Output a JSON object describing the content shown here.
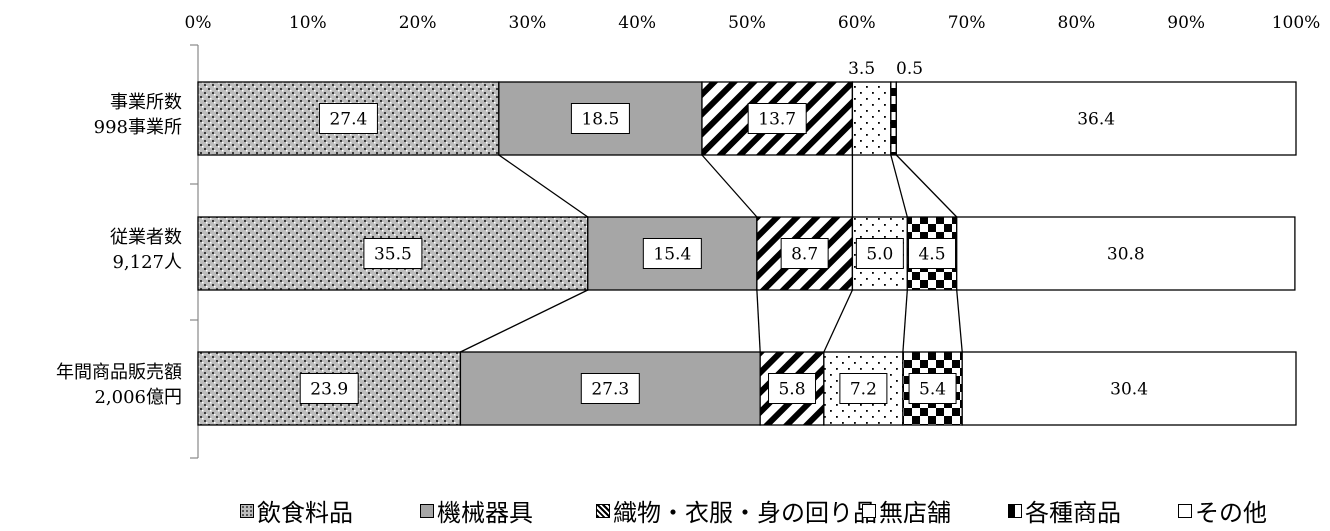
{
  "chart_data": {
    "type": "bar",
    "orientation": "horizontal",
    "stacked": true,
    "percent": true,
    "xlim": [
      0,
      100
    ],
    "x_ticks": [
      "0%",
      "10%",
      "20%",
      "30%",
      "40%",
      "50%",
      "60%",
      "70%",
      "80%",
      "90%",
      "100%"
    ],
    "categories": [
      [
        "事業所数",
        "998事業所"
      ],
      [
        "従業者数",
        "9,127人"
      ],
      [
        "年間商品販売額",
        "2,006億円"
      ]
    ],
    "series": [
      {
        "name": "飲食料品",
        "values": [
          27.4,
          35.5,
          23.9
        ],
        "labels": [
          "27.4",
          "35.5",
          "23.9"
        ]
      },
      {
        "name": "機械器具",
        "values": [
          18.5,
          15.4,
          27.3
        ],
        "labels": [
          "18.5",
          "15.4",
          "27.3"
        ]
      },
      {
        "name": "織物・衣服・身の回り品",
        "values": [
          13.7,
          8.7,
          5.8
        ],
        "labels": [
          "13.7",
          "8.7",
          "5.8"
        ]
      },
      {
        "name": "無店舗",
        "values": [
          3.5,
          5.0,
          7.2
        ],
        "labels": [
          "3.5",
          "5.0",
          "7.2"
        ]
      },
      {
        "name": "各種商品",
        "values": [
          0.5,
          4.5,
          5.4
        ],
        "labels": [
          "0.5",
          "4.5",
          "5.4"
        ]
      },
      {
        "name": "その他",
        "values": [
          36.4,
          30.8,
          30.4
        ],
        "labels": [
          "36.4",
          "30.8",
          "30.4"
        ]
      }
    ],
    "grid": false,
    "legend_position": "bottom",
    "colors": {
      "grey": "#a6a6a6",
      "black": "#000000",
      "white": "#ffffff"
    }
  }
}
